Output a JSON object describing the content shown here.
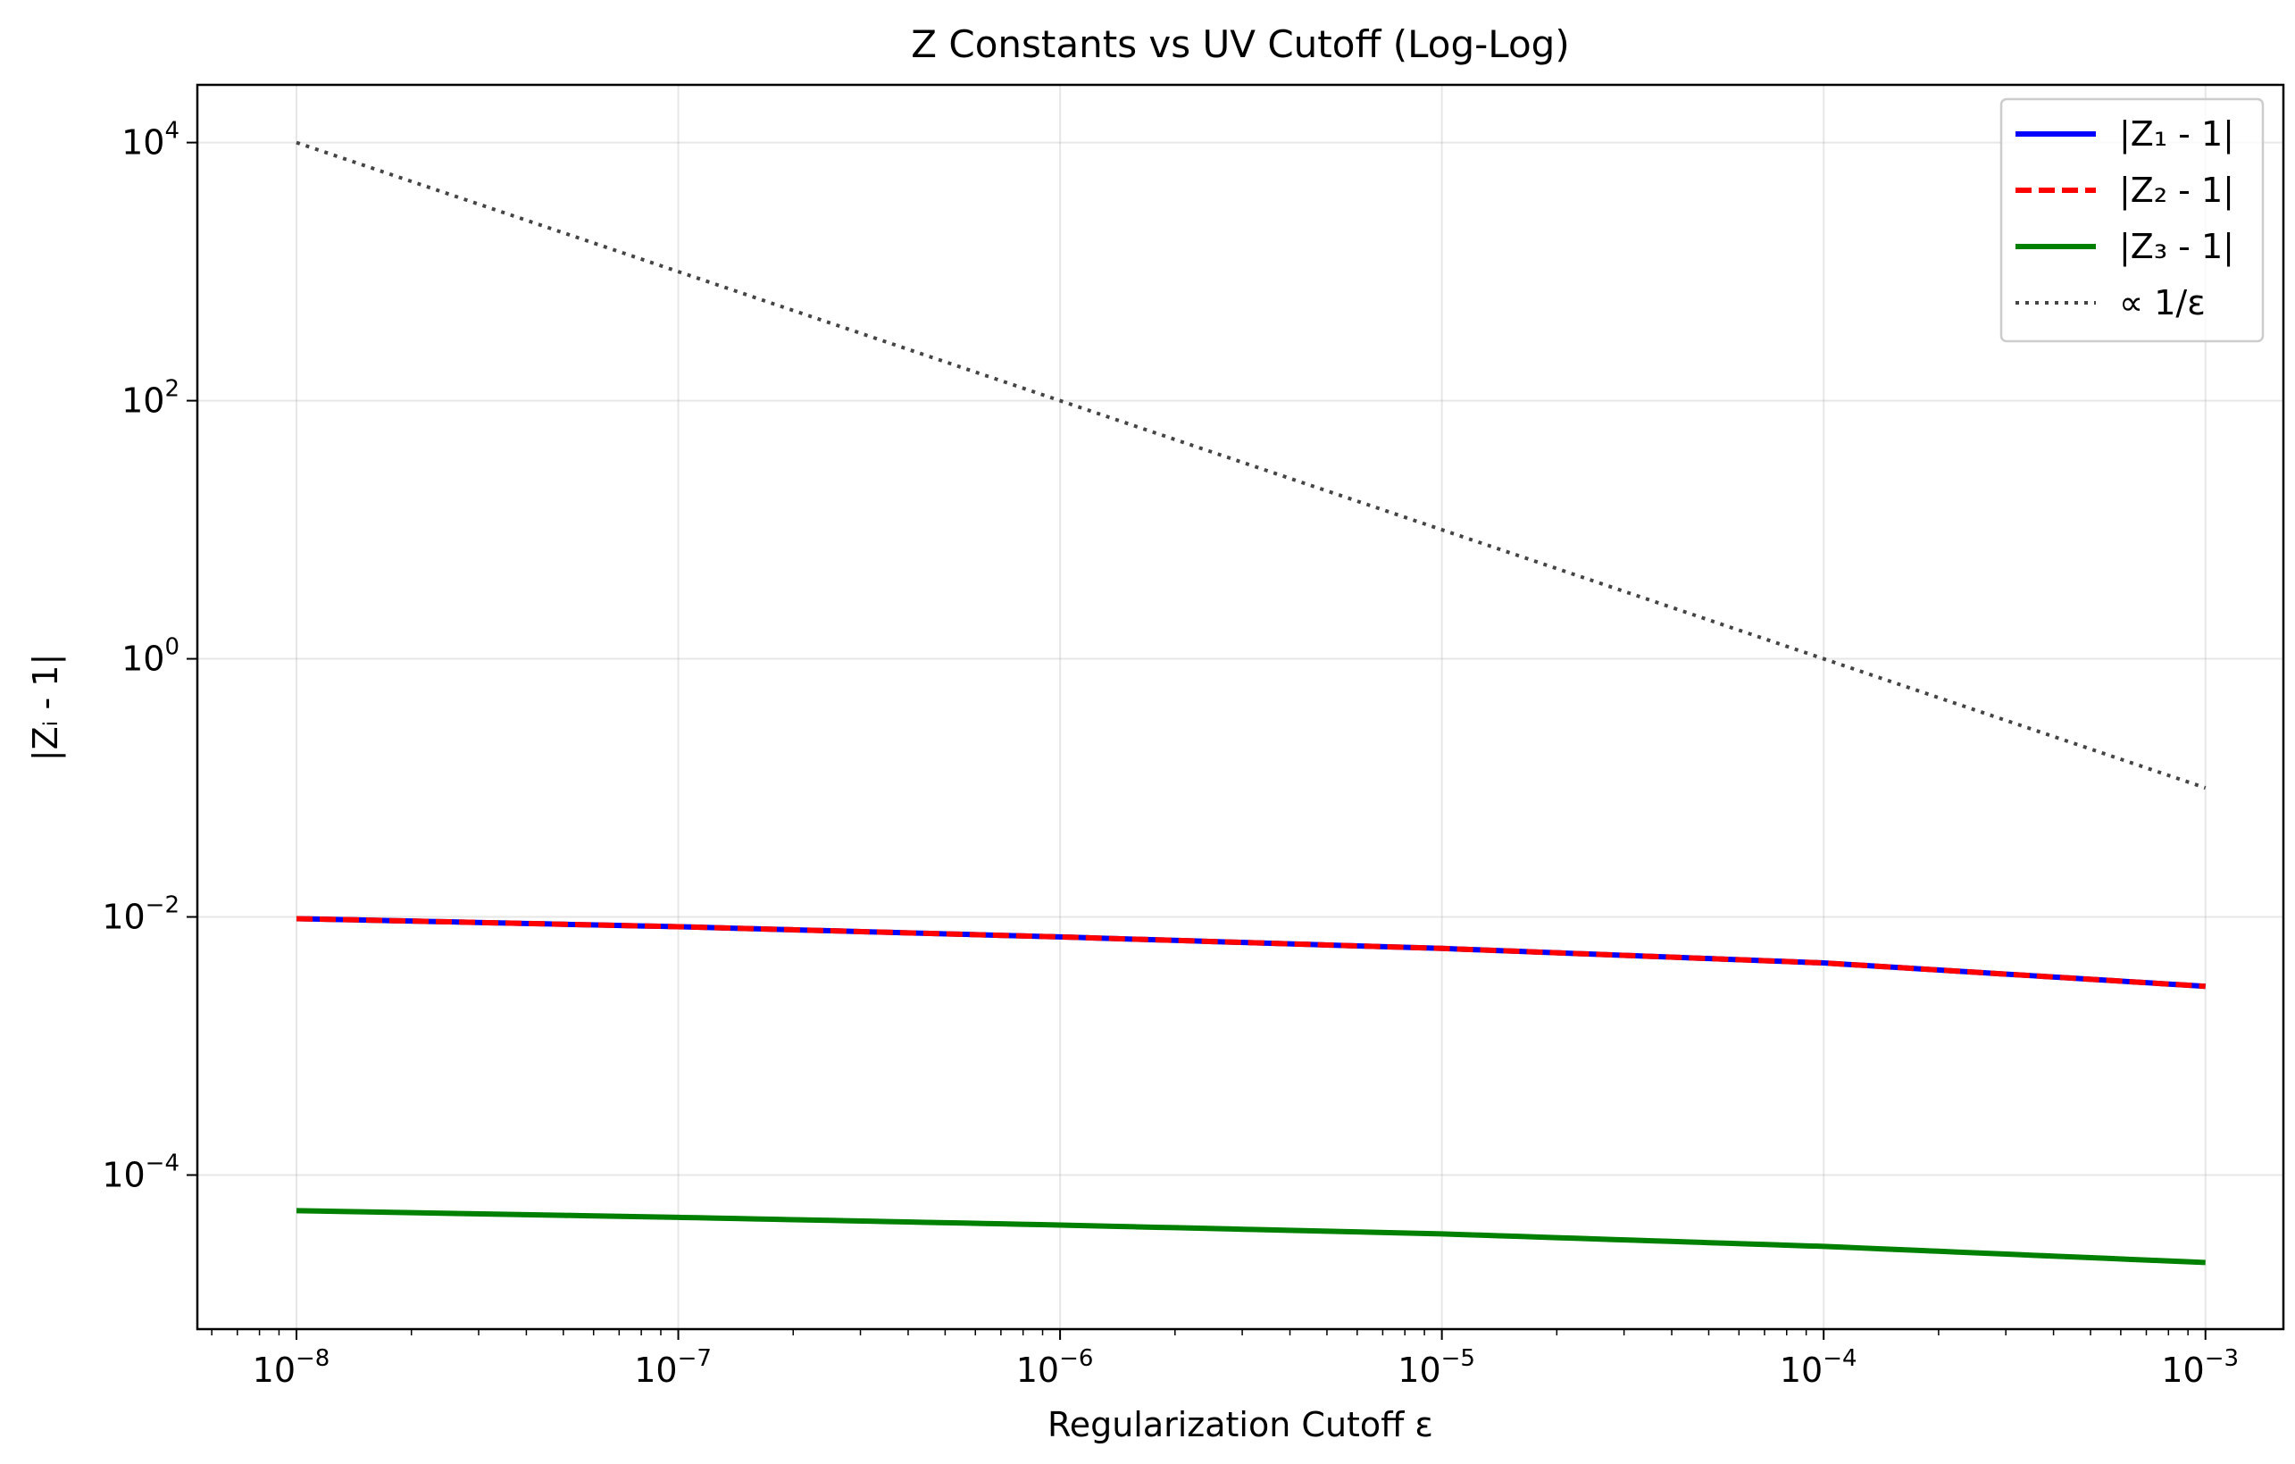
{
  "chart_data": {
    "type": "line",
    "title": "Z Constants vs UV Cutoff (Log-Log)",
    "xlabel": "Regularization Cutoff ε",
    "ylabel": "|Zᵢ - 1|",
    "x_scale": "log",
    "y_scale": "log",
    "xlim": [
      5.5e-09,
      0.0016
    ],
    "ylim": [
      6.4e-06,
      28000.0
    ],
    "grid": true,
    "legend_position": "top-right",
    "x_ticks": [
      {
        "base": "10",
        "exp": "−8",
        "value": 1e-08
      },
      {
        "base": "10",
        "exp": "−7",
        "value": 1e-07
      },
      {
        "base": "10",
        "exp": "−6",
        "value": 1e-06
      },
      {
        "base": "10",
        "exp": "−5",
        "value": 1e-05
      },
      {
        "base": "10",
        "exp": "−4",
        "value": 0.0001
      },
      {
        "base": "10",
        "exp": "−3",
        "value": 0.001
      }
    ],
    "y_ticks": [
      {
        "base": "10",
        "exp": "−4",
        "value": 0.0001
      },
      {
        "base": "10",
        "exp": "−2",
        "value": 0.01
      },
      {
        "base": "10",
        "exp": "0",
        "value": 1
      },
      {
        "base": "10",
        "exp": "2",
        "value": 100
      },
      {
        "base": "10",
        "exp": "4",
        "value": 10000
      }
    ],
    "series": [
      {
        "name": "|Z₁ - 1|",
        "color": "#0000ff",
        "dash": "solid",
        "x": [
          1e-08,
          1e-07,
          1e-06,
          1e-05,
          0.0001,
          0.001
        ],
        "y": [
          0.0097,
          0.0084,
          0.007,
          0.0057,
          0.0044,
          0.0029
        ]
      },
      {
        "name": "|Z₂ - 1|",
        "color": "#ff0000",
        "dash": "dashed",
        "x": [
          1e-08,
          1e-07,
          1e-06,
          1e-05,
          0.0001,
          0.001
        ],
        "y": [
          0.0097,
          0.0084,
          0.007,
          0.0057,
          0.0044,
          0.0029
        ]
      },
      {
        "name": "|Z₃ - 1|",
        "color": "#008000",
        "dash": "solid",
        "x": [
          1e-08,
          1e-07,
          1e-06,
          1e-05,
          0.0001,
          0.001
        ],
        "y": [
          5.3e-05,
          4.7e-05,
          4.1e-05,
          3.5e-05,
          2.8e-05,
          2.1e-05
        ]
      },
      {
        "name": "∝ 1/ε",
        "color": "#444444",
        "dash": "dotted",
        "x": [
          1e-08,
          0.001
        ],
        "y": [
          10000,
          0.1
        ]
      }
    ]
  }
}
